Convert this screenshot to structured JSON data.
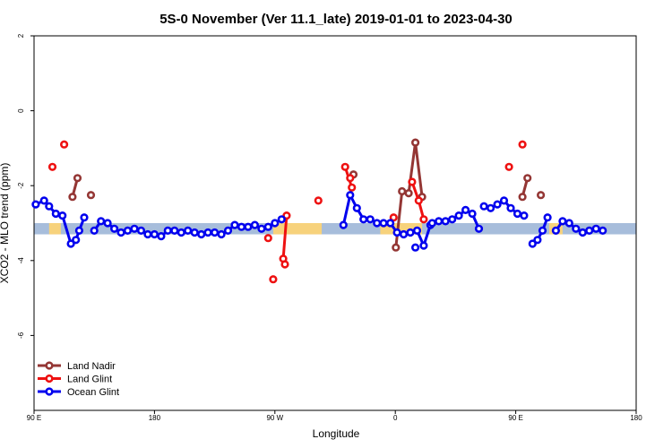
{
  "chart_data": {
    "type": "line",
    "title": "5S-0 November (Ver 11.1_late)   2019-01-01 to 2023-04-30",
    "xlabel": "Longitude",
    "ylabel": "XCO2 - MLO trend (ppm)",
    "xlim": [
      90,
      450
    ],
    "ylim": [
      -8,
      2
    ],
    "x_ticks": [
      {
        "value": 90,
        "label": "90 E"
      },
      {
        "value": 162,
        "label": "180"
      },
      {
        "value": 234,
        "label": "90 W"
      },
      {
        "value": 306,
        "label": "0"
      },
      {
        "value": 378,
        "label": "90 E"
      },
      {
        "value": 450,
        "label": "180"
      }
    ],
    "y_ticks": [
      {
        "value": 2,
        "label": "2"
      },
      {
        "value": 0,
        "label": "0"
      },
      {
        "value": -2,
        "label": "-2"
      },
      {
        "value": -4,
        "label": "-4"
      },
      {
        "value": -6,
        "label": "-6"
      }
    ],
    "band": {
      "y_range": [
        -3.3,
        -3.0
      ],
      "ocean_color": "#a7bddb",
      "land_color": "#f7d27c",
      "land_segments": [
        [
          99,
          106
        ],
        [
          233,
          262
        ],
        [
          297,
          322
        ],
        [
          398,
          406
        ]
      ]
    },
    "legend_position": "bottom-left",
    "series": [
      {
        "name": "Land Nadir",
        "color": "#943634",
        "segments": [
          [
            [
              113,
              -2.3
            ],
            [
              116,
              -1.8
            ]
          ],
          [
            [
              124,
              -2.25
            ]
          ],
          [
            [
              306.3,
              -3.65
            ],
            [
              310,
              -2.15
            ],
            [
              314,
              -2.2
            ],
            [
              318,
              -0.85
            ],
            [
              322,
              -2.3
            ]
          ],
          [
            [
              281,
              -1.7
            ]
          ],
          [
            [
              382,
              -2.3
            ],
            [
              385,
              -1.8
            ]
          ],
          [
            [
              393,
              -2.25
            ]
          ]
        ]
      },
      {
        "name": "Land Glint",
        "color": "#ee1111",
        "segments": [
          [
            [
              101,
              -1.5
            ]
          ],
          [
            [
              108,
              -0.9
            ]
          ],
          [
            [
              230,
              -3.4
            ]
          ],
          [
            [
              233,
              -4.5
            ]
          ],
          [
            [
              241,
              -2.8
            ],
            [
              239,
              -3.95
            ],
            [
              240,
              -4.1
            ]
          ],
          [
            [
              260,
              -2.4
            ]
          ],
          [
            [
              276,
              -1.5
            ],
            [
              280,
              -2.05
            ]
          ],
          [
            [
              279,
              -1.8
            ]
          ],
          [
            [
              305,
              -2.85
            ]
          ],
          [
            [
              316,
              -1.9
            ],
            [
              320,
              -2.4
            ],
            [
              323,
              -2.9
            ]
          ],
          [
            [
              374,
              -1.5
            ]
          ],
          [
            [
              382,
              -0.9
            ]
          ]
        ]
      },
      {
        "name": "Ocean Glint",
        "color": "#0000ee",
        "segments": [
          [
            [
              91,
              -2.5
            ],
            [
              96,
              -2.4
            ],
            [
              99,
              -2.55
            ],
            [
              103,
              -2.75
            ],
            [
              107,
              -2.8
            ],
            [
              112,
              -3.55
            ],
            [
              115,
              -3.45
            ],
            [
              117,
              -3.2
            ],
            [
              120,
              -2.85
            ]
          ],
          [
            [
              126,
              -3.2
            ],
            [
              130,
              -2.95
            ],
            [
              134,
              -3.0
            ],
            [
              138,
              -3.15
            ],
            [
              142,
              -3.25
            ],
            [
              146,
              -3.2
            ],
            [
              150,
              -3.15
            ],
            [
              154,
              -3.2
            ],
            [
              158,
              -3.3
            ],
            [
              162,
              -3.3
            ],
            [
              166,
              -3.35
            ],
            [
              170,
              -3.2
            ],
            [
              174,
              -3.2
            ],
            [
              178,
              -3.25
            ],
            [
              182,
              -3.2
            ],
            [
              186,
              -3.25
            ],
            [
              190,
              -3.3
            ],
            [
              194,
              -3.25
            ],
            [
              198,
              -3.25
            ],
            [
              202,
              -3.3
            ],
            [
              206,
              -3.2
            ],
            [
              210,
              -3.05
            ],
            [
              214,
              -3.1
            ],
            [
              218,
              -3.1
            ],
            [
              222,
              -3.05
            ],
            [
              226,
              -3.15
            ],
            [
              230,
              -3.1
            ],
            [
              234,
              -3.0
            ],
            [
              238,
              -2.9
            ]
          ],
          [
            [
              275,
              -3.05
            ],
            [
              279,
              -2.25
            ],
            [
              283,
              -2.6
            ],
            [
              287,
              -2.9
            ],
            [
              291,
              -2.9
            ],
            [
              295,
              -3.0
            ],
            [
              299,
              -3.0
            ],
            [
              303,
              -3.0
            ],
            [
              307,
              -3.25
            ],
            [
              311,
              -3.3
            ],
            [
              315,
              -3.25
            ],
            [
              319,
              -3.2
            ],
            [
              323,
              -3.6
            ],
            [
              327,
              -3.05
            ]
          ],
          [
            [
              318,
              -3.65
            ]
          ],
          [
            [
              328,
              -3.0
            ],
            [
              332,
              -2.95
            ],
            [
              336,
              -2.95
            ],
            [
              340,
              -2.9
            ],
            [
              344,
              -2.8
            ],
            [
              348,
              -2.65
            ],
            [
              352,
              -2.75
            ],
            [
              356,
              -3.15
            ]
          ],
          [
            [
              359,
              -2.55
            ],
            [
              363,
              -2.6
            ],
            [
              367,
              -2.5
            ],
            [
              371,
              -2.4
            ],
            [
              375,
              -2.6
            ],
            [
              379,
              -2.75
            ],
            [
              383,
              -2.8
            ]
          ],
          [
            [
              388,
              -3.55
            ],
            [
              391,
              -3.45
            ],
            [
              394,
              -3.2
            ],
            [
              397,
              -2.85
            ]
          ],
          [
            [
              402,
              -3.2
            ],
            [
              406,
              -2.95
            ],
            [
              410,
              -3.0
            ],
            [
              414,
              -3.15
            ],
            [
              418,
              -3.25
            ],
            [
              422,
              -3.2
            ],
            [
              426,
              -3.15
            ],
            [
              430,
              -3.2
            ]
          ]
        ]
      }
    ]
  }
}
